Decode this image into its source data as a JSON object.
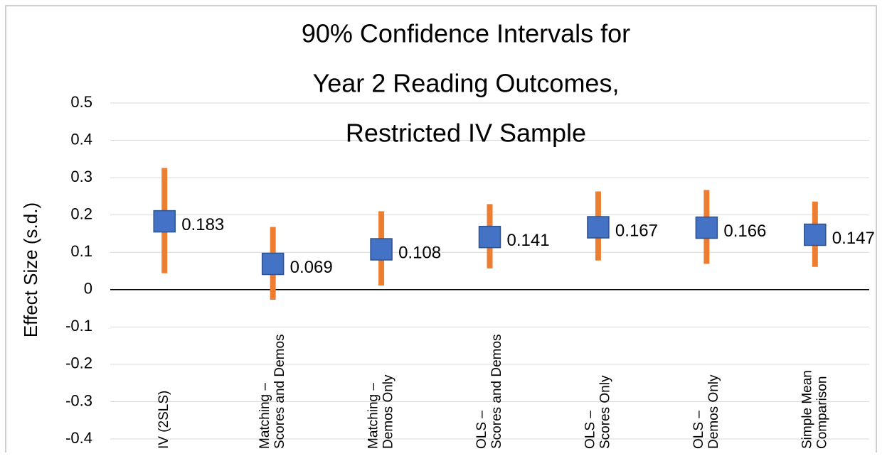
{
  "chart_data": {
    "type": "interval",
    "title": [
      "90% Confidence Intervals for",
      "Year 2 Reading Outcomes,",
      "Restricted IV Sample"
    ],
    "y_label": "Effect Size (s.d.)",
    "categories": [
      [
        "IV (2SLS)"
      ],
      [
        "Matching –",
        "Scores and Demos"
      ],
      [
        "Matching –",
        "Demos Only"
      ],
      [
        "OLS –",
        "Scores and Demos"
      ],
      [
        "OLS –",
        "Scores Only"
      ],
      [
        "OLS –",
        "Demos Only"
      ],
      [
        "Simple Mean",
        "Comparison"
      ]
    ],
    "values": [
      0.183,
      0.069,
      0.108,
      0.141,
      0.167,
      0.166,
      0.147
    ],
    "lower": [
      0.044,
      -0.027,
      0.011,
      0.057,
      0.078,
      0.069,
      0.061
    ],
    "upper": [
      0.326,
      0.168,
      0.21,
      0.229,
      0.263,
      0.267,
      0.236
    ],
    "color": "#4472c4",
    "error_color": "#ed7d31",
    "ylim": [
      -0.4,
      0.5
    ],
    "yticks": [
      -0.4,
      -0.3,
      -0.2,
      -0.1,
      0,
      0.1,
      0.2,
      0.3,
      0.4,
      0.5
    ],
    "grid": true
  }
}
